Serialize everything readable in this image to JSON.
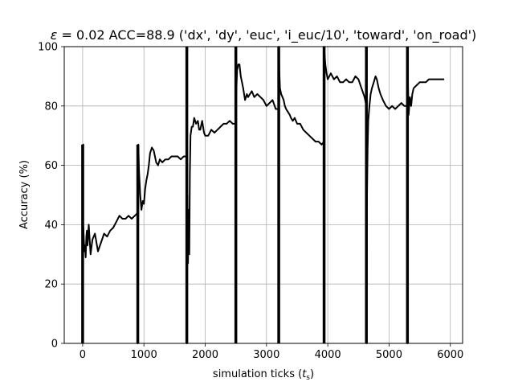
{
  "chart_data": {
    "type": "line",
    "title": "ε = 0.02 ACC=88.9 ('dx', 'dy', 'euc', 'i_euc/10', 'toward', 'on_road')",
    "title_prefix": "ε",
    "title_rest": " = 0.02 ACC=88.9 ('dx', 'dy', 'euc', 'i_euc/10', 'toward', 'on_road')",
    "xlabel": "simulation ticks (t_s)",
    "xlabel_main": "simulation ticks (",
    "xlabel_var": "t",
    "xlabel_sub": "s",
    "xlabel_end": ")",
    "ylabel": "Accuracy (%)",
    "xlim": [
      -300,
      6200
    ],
    "ylim": [
      0,
      100
    ],
    "xticks": [
      0,
      1000,
      2000,
      3000,
      4000,
      5000,
      6000
    ],
    "yticks": [
      0,
      20,
      40,
      60,
      80,
      100
    ],
    "grid": true,
    "line_color": "#000000",
    "series": [
      {
        "x": [
          0,
          0,
          10,
          10,
          20,
          30,
          40,
          50,
          60,
          70,
          80,
          100,
          130,
          160,
          200,
          250,
          300,
          350,
          400,
          450,
          500,
          550,
          600,
          650,
          700,
          750,
          800,
          850,
          900,
          900,
          910,
          920,
          940,
          960,
          980,
          1000,
          1020,
          1040,
          1060,
          1080,
          1100,
          1130,
          1160,
          1200,
          1230,
          1260,
          1300,
          1350,
          1400,
          1450,
          1500,
          1550,
          1600,
          1650,
          1700,
          1700,
          1710,
          1720,
          1730,
          1740,
          1750,
          1760,
          1780,
          1800,
          1820,
          1850,
          1880,
          1900,
          1920,
          1950,
          1980,
          2000,
          2050,
          2100,
          2150,
          2200,
          2250,
          2300,
          2350,
          2400,
          2450,
          2500,
          2500,
          2510,
          2520,
          2540,
          2560,
          2580,
          2600,
          2620,
          2650,
          2680,
          2700,
          2730,
          2760,
          2800,
          2850,
          2900,
          2950,
          3000,
          3050,
          3100,
          3150,
          3200,
          3200,
          3210,
          3220,
          3240,
          3260,
          3280,
          3300,
          3320,
          3350,
          3380,
          3400,
          3430,
          3460,
          3500,
          3550,
          3600,
          3650,
          3700,
          3750,
          3800,
          3850,
          3900,
          3940,
          3940,
          3960,
          3980,
          4000,
          4050,
          4100,
          4150,
          4200,
          4250,
          4300,
          4350,
          4400,
          4450,
          4500,
          4550,
          4600,
          4630,
          4630,
          4640,
          4650,
          4660,
          4680,
          4700,
          4720,
          4750,
          4780,
          4800,
          4830,
          4860,
          4900,
          4950,
          5000,
          5050,
          5100,
          5150,
          5200,
          5250,
          5300,
          5300,
          5310,
          5320,
          5340,
          5360,
          5380,
          5400,
          5450,
          5500,
          5550,
          5600,
          5650,
          5700,
          5750,
          5800,
          5850,
          5900
        ],
        "y": [
          0,
          50,
          67,
          40,
          35,
          31,
          33,
          29,
          36,
          38,
          33,
          40,
          30,
          35,
          37,
          31,
          34,
          37,
          36,
          38,
          39,
          41,
          43,
          42,
          42,
          43,
          42,
          43,
          44,
          0,
          67,
          58,
          50,
          45,
          48,
          47,
          52,
          55,
          57,
          60,
          64,
          66,
          65,
          61,
          60,
          62,
          61,
          62,
          62,
          63,
          63,
          63,
          62,
          63,
          63,
          0,
          50,
          27,
          45,
          30,
          57,
          70,
          73,
          73,
          76,
          74,
          75,
          72,
          72,
          75,
          71,
          70,
          70,
          72,
          71,
          72,
          73,
          74,
          74,
          75,
          74,
          74,
          80,
          86,
          92,
          94,
          94,
          90,
          88,
          86,
          82,
          84,
          83,
          84,
          85,
          83,
          84,
          83,
          82,
          80,
          81,
          82,
          79,
          79,
          100,
          92,
          86,
          84,
          83,
          82,
          80,
          79,
          78,
          77,
          76,
          75,
          76,
          74,
          74,
          72,
          71,
          70,
          69,
          68,
          68,
          67,
          68,
          100,
          94,
          91,
          89,
          91,
          89,
          90,
          88,
          88,
          89,
          88,
          88,
          90,
          89,
          86,
          83,
          80,
          0,
          50,
          65,
          75,
          80,
          84,
          86,
          88,
          90,
          89,
          86,
          84,
          82,
          80,
          79,
          80,
          79,
          80,
          81,
          80,
          80,
          0,
          86,
          77,
          83,
          80,
          84,
          86,
          87,
          88,
          88,
          88,
          89,
          89,
          89,
          89,
          89,
          89
        ]
      }
    ],
    "spikes": [
      {
        "x": 0,
        "y": [
          0,
          67
        ]
      },
      {
        "x": 900,
        "y": [
          0,
          67
        ]
      },
      {
        "x": 1700,
        "y": [
          0,
          100
        ]
      },
      {
        "x": 2500,
        "y": [
          0,
          100
        ]
      },
      {
        "x": 3200,
        "y": [
          0,
          100
        ]
      },
      {
        "x": 3940,
        "y": [
          0,
          100
        ]
      },
      {
        "x": 4630,
        "y": [
          0,
          100
        ]
      },
      {
        "x": 5300,
        "y": [
          0,
          100
        ]
      }
    ]
  }
}
